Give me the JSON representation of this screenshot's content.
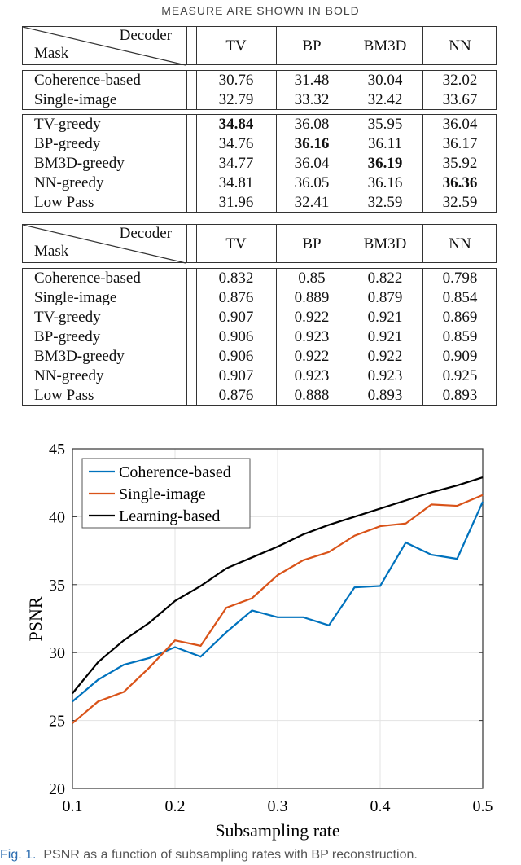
{
  "header_text": "MEASURE ARE SHOWN IN BOLD",
  "table_psnr": {
    "corner_top": "Decoder",
    "corner_bottom": "Mask",
    "columns": [
      "TV",
      "BP",
      "BM3D",
      "NN"
    ],
    "groups": [
      [
        {
          "mask": "Coherence-based",
          "values": [
            "30.76",
            "31.48",
            "30.04",
            "32.02"
          ],
          "bold": -1
        },
        {
          "mask": "Single-image",
          "values": [
            "32.79",
            "33.32",
            "32.42",
            "33.67"
          ],
          "bold": -1
        }
      ],
      [
        {
          "mask": "TV-greedy",
          "values": [
            "34.84",
            "36.08",
            "35.95",
            "36.04"
          ],
          "bold": 0
        },
        {
          "mask": "BP-greedy",
          "values": [
            "34.76",
            "36.16",
            "36.11",
            "36.17"
          ],
          "bold": 1
        },
        {
          "mask": "BM3D-greedy",
          "values": [
            "34.77",
            "36.04",
            "36.19",
            "35.92"
          ],
          "bold": 2
        },
        {
          "mask": "NN-greedy",
          "values": [
            "34.81",
            "36.05",
            "36.16",
            "36.36"
          ],
          "bold": 3
        },
        {
          "mask": "Low Pass",
          "values": [
            "31.96",
            "32.41",
            "32.59",
            "32.59"
          ],
          "bold": -1
        }
      ]
    ]
  },
  "table_ssim": {
    "corner_top": "Decoder",
    "corner_bottom": "Mask",
    "columns": [
      "TV",
      "BP",
      "BM3D",
      "NN"
    ],
    "groups": [
      [
        {
          "mask": "Coherence-based",
          "values": [
            "0.832",
            "0.85",
            "0.822",
            "0.798"
          ],
          "bold": -1
        },
        {
          "mask": "Single-image",
          "values": [
            "0.876",
            "0.889",
            "0.879",
            "0.854"
          ],
          "bold": -1
        },
        {
          "mask": "TV-greedy",
          "values": [
            "0.907",
            "0.922",
            "0.921",
            "0.869"
          ],
          "bold": -1
        },
        {
          "mask": "BP-greedy",
          "values": [
            "0.906",
            "0.923",
            "0.921",
            "0.859"
          ],
          "bold": -1
        },
        {
          "mask": "BM3D-greedy",
          "values": [
            "0.906",
            "0.922",
            "0.922",
            "0.909"
          ],
          "bold": -1
        },
        {
          "mask": "NN-greedy",
          "values": [
            "0.907",
            "0.923",
            "0.923",
            "0.925"
          ],
          "bold": -1
        },
        {
          "mask": "Low Pass",
          "values": [
            "0.876",
            "0.888",
            "0.893",
            "0.893"
          ],
          "bold": -1
        }
      ]
    ]
  },
  "chart_data": {
    "type": "line",
    "xlabel": "Subsampling rate",
    "ylabel": "PSNR",
    "xlim": [
      0.1,
      0.5
    ],
    "ylim": [
      20,
      45
    ],
    "xticks": [
      "0.1",
      "0.2",
      "0.3",
      "0.4",
      "0.5"
    ],
    "yticks": [
      "20",
      "25",
      "30",
      "35",
      "40",
      "45"
    ],
    "grid": true,
    "legend": "top-left",
    "x": [
      0.1,
      0.125,
      0.15,
      0.175,
      0.2,
      0.225,
      0.25,
      0.275,
      0.3,
      0.325,
      0.35,
      0.375,
      0.4,
      0.425,
      0.45,
      0.475,
      0.5
    ],
    "series": [
      {
        "name": "Coherence-based",
        "color": "#0072bd",
        "values": [
          26.4,
          28.0,
          29.1,
          29.6,
          30.4,
          29.7,
          31.5,
          33.1,
          32.6,
          32.6,
          32.0,
          34.8,
          34.9,
          38.1,
          37.2,
          36.9,
          41.1
        ]
      },
      {
        "name": "Single-image",
        "color": "#d95319",
        "values": [
          24.8,
          26.4,
          27.1,
          28.9,
          30.9,
          30.5,
          33.3,
          34.0,
          35.7,
          36.8,
          37.4,
          38.6,
          39.3,
          39.5,
          40.9,
          40.8,
          41.6
        ]
      },
      {
        "name": "Learning-based",
        "color": "#000000",
        "values": [
          27.0,
          29.3,
          30.9,
          32.2,
          33.8,
          34.9,
          36.2,
          37.0,
          37.8,
          38.7,
          39.4,
          40.0,
          40.6,
          41.2,
          41.8,
          42.3,
          42.9
        ]
      }
    ]
  },
  "caption": {
    "label": "Fig. 1.",
    "text": "PSNR as a function of subsampling rates with BP reconstruction."
  }
}
